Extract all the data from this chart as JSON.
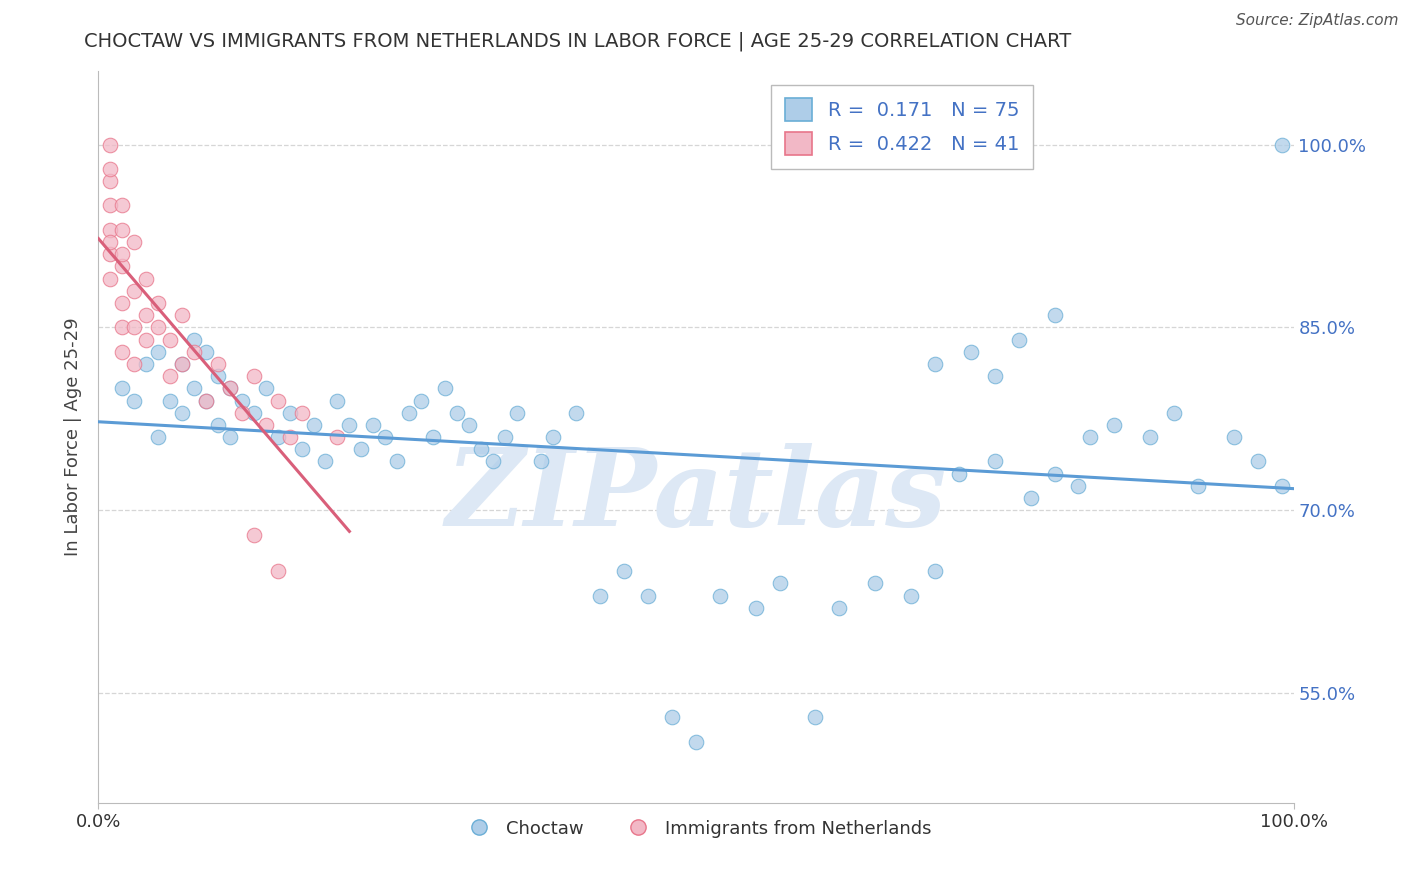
{
  "title": "CHOCTAW VS IMMIGRANTS FROM NETHERLANDS IN LABOR FORCE | AGE 25-29 CORRELATION CHART",
  "source": "Source: ZipAtlas.com",
  "ylabel": "In Labor Force | Age 25-29",
  "blue_label": "Choctaw",
  "pink_label": "Immigrants from Netherlands",
  "blue_R": 0.171,
  "blue_N": 75,
  "pink_R": 0.422,
  "pink_N": 41,
  "blue_color": "#aecde8",
  "pink_color": "#f2b8c6",
  "blue_edge_color": "#6aaed6",
  "pink_edge_color": "#e8758a",
  "blue_line_color": "#5b9bd5",
  "pink_line_color": "#d95f7a",
  "background_color": "#ffffff",
  "watermark": "ZIPatlas",
  "watermark_color": "#dde8f5",
  "grid_color": "#cccccc",
  "y_ticks": [
    0.55,
    0.7,
    0.85,
    1.0
  ],
  "y_tick_labels": [
    "55.0%",
    "70.0%",
    "85.0%",
    "100.0%"
  ],
  "xlim": [
    0.0,
    1.0
  ],
  "ylim": [
    0.46,
    1.06
  ],
  "blue_x": [
    0.02,
    0.03,
    0.04,
    0.05,
    0.05,
    0.06,
    0.07,
    0.07,
    0.08,
    0.08,
    0.09,
    0.09,
    0.1,
    0.1,
    0.11,
    0.11,
    0.12,
    0.13,
    0.14,
    0.15,
    0.16,
    0.17,
    0.18,
    0.19,
    0.2,
    0.21,
    0.22,
    0.23,
    0.24,
    0.25,
    0.26,
    0.27,
    0.28,
    0.29,
    0.3,
    0.31,
    0.32,
    0.33,
    0.34,
    0.35,
    0.37,
    0.38,
    0.4,
    0.42,
    0.44,
    0.46,
    0.48,
    0.5,
    0.52,
    0.55,
    0.57,
    0.6,
    0.62,
    0.65,
    0.68,
    0.7,
    0.72,
    0.75,
    0.78,
    0.8,
    0.82,
    0.85,
    0.88,
    0.9,
    0.92,
    0.95,
    0.97,
    0.99,
    0.7,
    0.73,
    0.75,
    0.77,
    0.8,
    0.83,
    0.99
  ],
  "blue_y": [
    0.8,
    0.79,
    0.82,
    0.76,
    0.83,
    0.79,
    0.82,
    0.78,
    0.8,
    0.84,
    0.79,
    0.83,
    0.77,
    0.81,
    0.8,
    0.76,
    0.79,
    0.78,
    0.8,
    0.76,
    0.78,
    0.75,
    0.77,
    0.74,
    0.79,
    0.77,
    0.75,
    0.77,
    0.76,
    0.74,
    0.78,
    0.79,
    0.76,
    0.8,
    0.78,
    0.77,
    0.75,
    0.74,
    0.76,
    0.78,
    0.74,
    0.76,
    0.78,
    0.63,
    0.65,
    0.63,
    0.53,
    0.51,
    0.63,
    0.62,
    0.64,
    0.53,
    0.62,
    0.64,
    0.63,
    0.65,
    0.73,
    0.74,
    0.71,
    0.73,
    0.72,
    0.77,
    0.76,
    0.78,
    0.72,
    0.76,
    0.74,
    1.0,
    0.82,
    0.83,
    0.81,
    0.84,
    0.86,
    0.76,
    0.72
  ],
  "pink_x": [
    0.01,
    0.01,
    0.01,
    0.01,
    0.01,
    0.01,
    0.01,
    0.01,
    0.02,
    0.02,
    0.02,
    0.02,
    0.02,
    0.02,
    0.02,
    0.03,
    0.03,
    0.03,
    0.03,
    0.04,
    0.04,
    0.04,
    0.05,
    0.05,
    0.06,
    0.06,
    0.07,
    0.07,
    0.08,
    0.09,
    0.1,
    0.11,
    0.12,
    0.13,
    0.14,
    0.15,
    0.16,
    0.17,
    0.2,
    0.13,
    0.15
  ],
  "pink_y": [
    0.97,
    0.95,
    0.93,
    0.91,
    0.89,
    1.0,
    0.98,
    0.92,
    0.93,
    0.9,
    0.87,
    0.91,
    0.95,
    0.85,
    0.83,
    0.92,
    0.88,
    0.85,
    0.82,
    0.86,
    0.89,
    0.84,
    0.85,
    0.87,
    0.84,
    0.81,
    0.86,
    0.82,
    0.83,
    0.79,
    0.82,
    0.8,
    0.78,
    0.81,
    0.77,
    0.79,
    0.76,
    0.78,
    0.76,
    0.68,
    0.65
  ]
}
